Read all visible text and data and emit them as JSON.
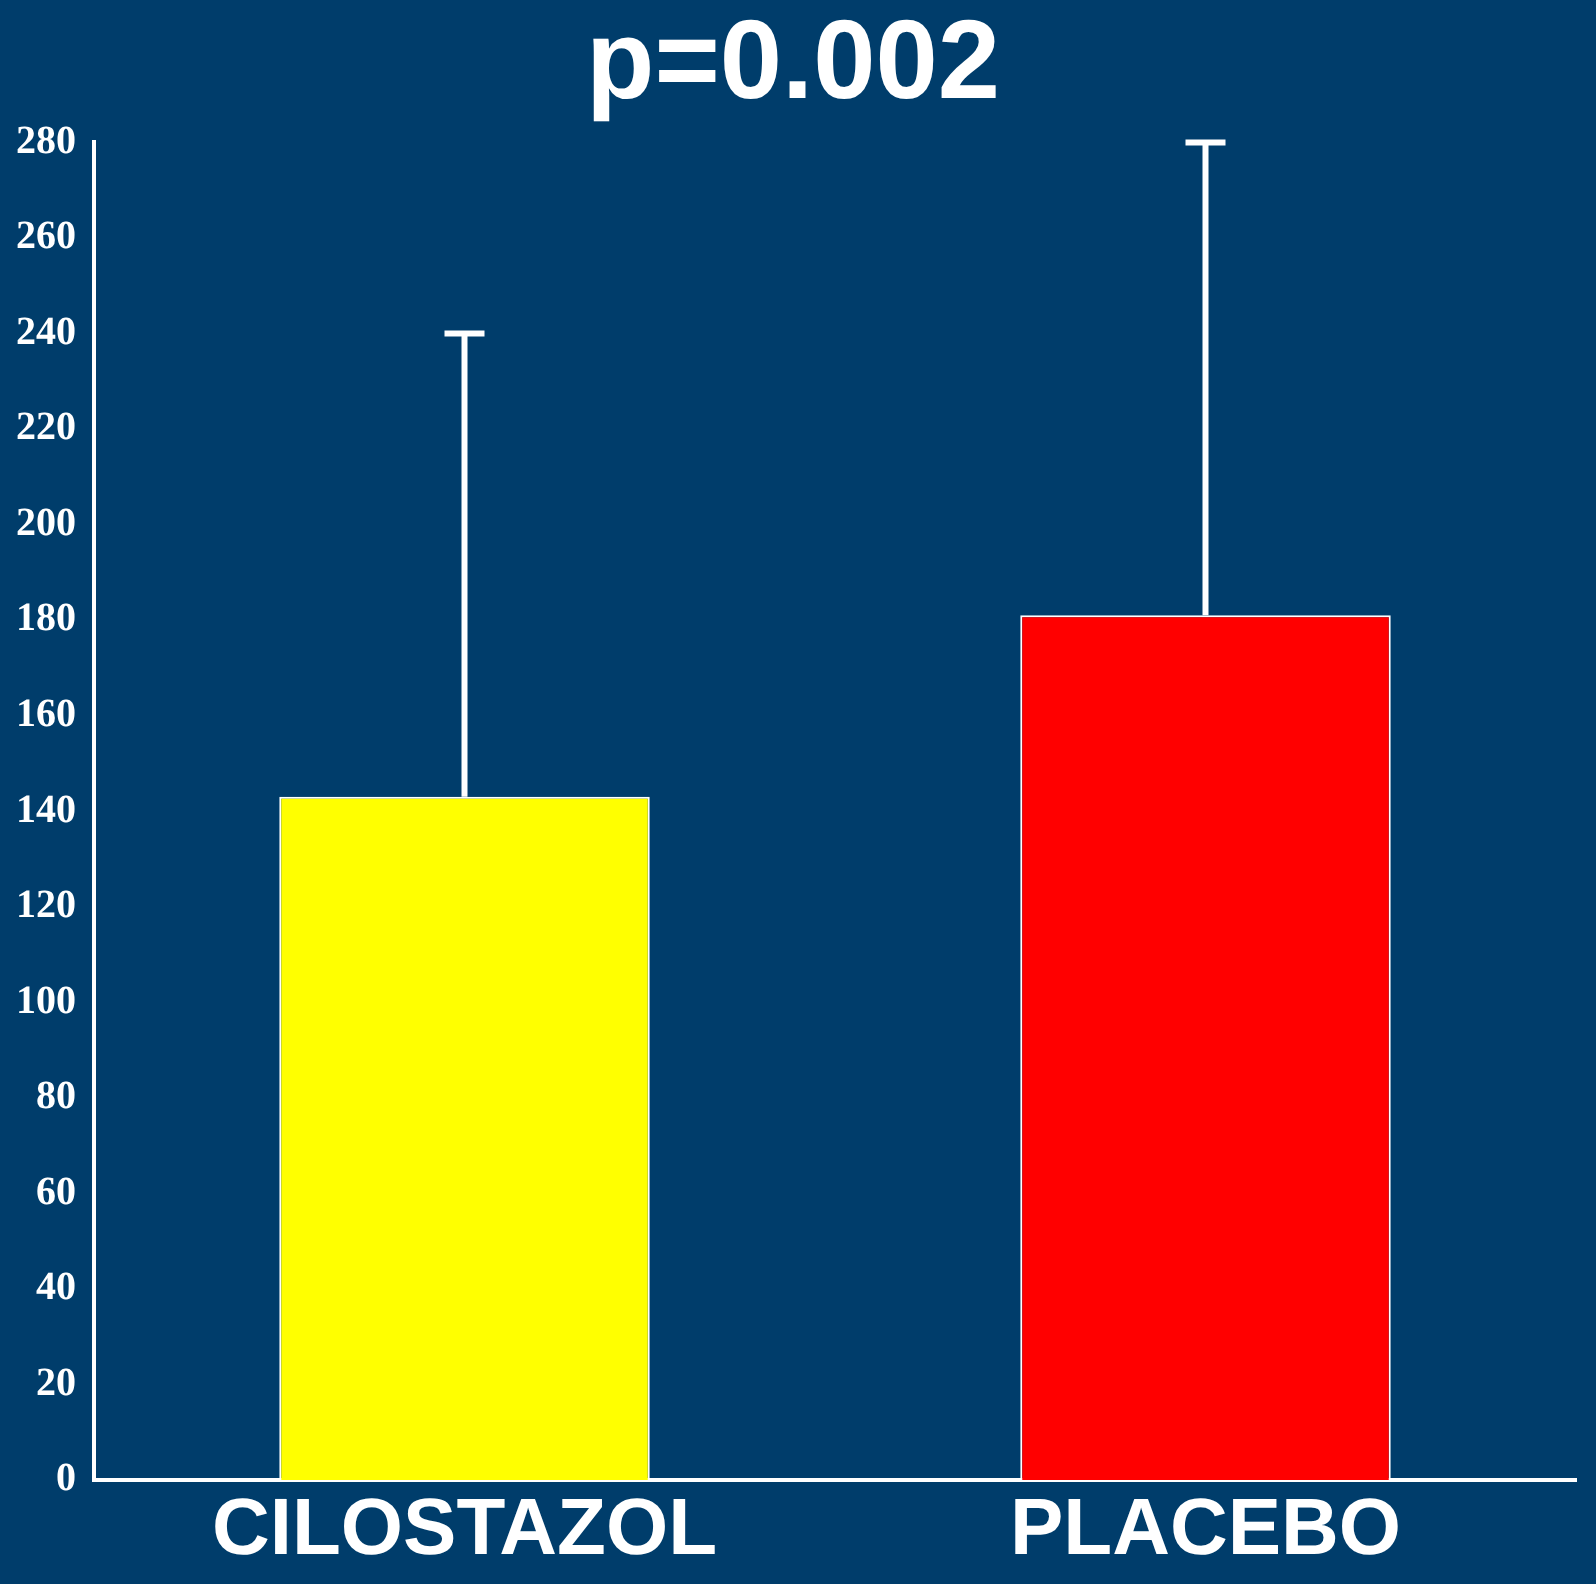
{
  "chart_data": {
    "type": "bar",
    "title": "p=0.002",
    "categories": [
      "CILOSTAZOL",
      "PLACEBO"
    ],
    "values": [
      143,
      181
    ],
    "colors": [
      "#ffff00",
      "#ff0000"
    ],
    "errors": [
      [
        143,
        240
      ],
      [
        181,
        280
      ]
    ],
    "ylim": [
      0,
      280
    ],
    "yticks": [
      0,
      20,
      40,
      60,
      80,
      100,
      120,
      140,
      160,
      180,
      200,
      220,
      240,
      260,
      280
    ],
    "grid": false,
    "legend": false
  }
}
